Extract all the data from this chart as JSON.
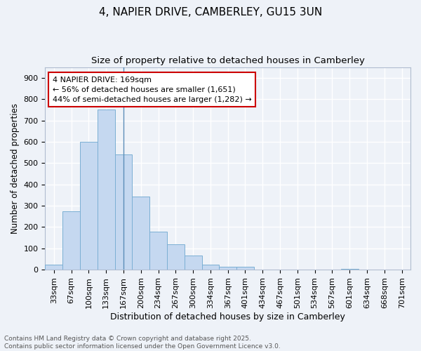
{
  "title1": "4, NAPIER DRIVE, CAMBERLEY, GU15 3UN",
  "title2": "Size of property relative to detached houses in Camberley",
  "xlabel": "Distribution of detached houses by size in Camberley",
  "ylabel": "Number of detached properties",
  "categories": [
    "33sqm",
    "67sqm",
    "100sqm",
    "133sqm",
    "167sqm",
    "200sqm",
    "234sqm",
    "267sqm",
    "300sqm",
    "334sqm",
    "367sqm",
    "401sqm",
    "434sqm",
    "467sqm",
    "501sqm",
    "534sqm",
    "567sqm",
    "601sqm",
    "634sqm",
    "668sqm",
    "701sqm"
  ],
  "values": [
    25,
    275,
    600,
    750,
    540,
    343,
    180,
    118,
    68,
    25,
    15,
    14,
    0,
    0,
    0,
    0,
    0,
    5,
    0,
    0,
    0
  ],
  "bar_color": "#c5d8f0",
  "bar_edge_color": "#7bafd4",
  "vline_x_idx": 4,
  "vline_color": "#5b8db8",
  "annotation_text": "4 NAPIER DRIVE: 169sqm\n← 56% of detached houses are smaller (1,651)\n44% of semi-detached houses are larger (1,282) →",
  "annotation_box_facecolor": "#ffffff",
  "annotation_box_edgecolor": "#cc0000",
  "background_color": "#eef2f8",
  "plot_bg_color": "#eef2f8",
  "grid_color": "#ffffff",
  "ylim": [
    0,
    950
  ],
  "yticks": [
    0,
    100,
    200,
    300,
    400,
    500,
    600,
    700,
    800,
    900
  ],
  "footnote": "Contains HM Land Registry data © Crown copyright and database right 2025.\nContains public sector information licensed under the Open Government Licence v3.0.",
  "title1_fontsize": 11,
  "title2_fontsize": 9.5,
  "xlabel_fontsize": 9,
  "ylabel_fontsize": 8.5,
  "tick_fontsize": 8,
  "annotation_fontsize": 8,
  "footnote_fontsize": 6.5,
  "footnote_color": "#555555"
}
